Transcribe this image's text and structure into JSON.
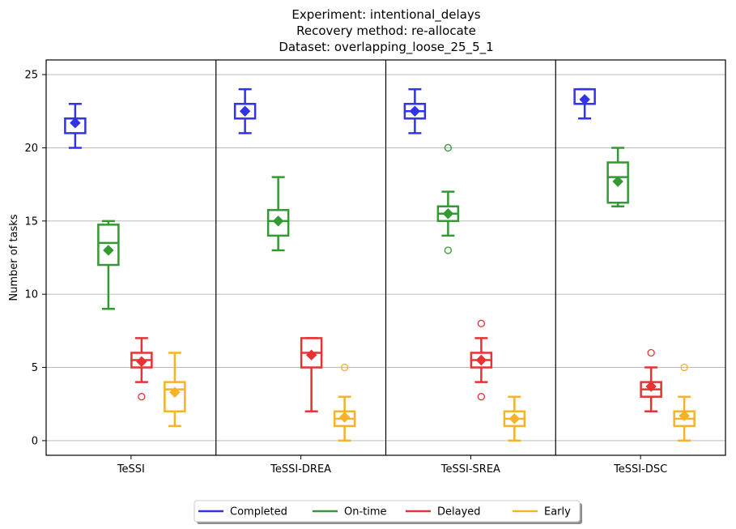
{
  "chart_data": {
    "type": "box",
    "title_lines": [
      "Experiment: intentional_delays",
      "Recovery method: re-allocate",
      "Dataset: overlapping_loose_25_5_1"
    ],
    "xlabel": "",
    "ylabel": "Number of tasks",
    "ylim": [
      -1,
      26
    ],
    "yticks": [
      0,
      5,
      10,
      15,
      20,
      25
    ],
    "grid": "horizontal",
    "legend_position": "bottom-center",
    "categories": [
      "TeSSI",
      "TeSSI-DREA",
      "TeSSI-SREA",
      "TeSSI-DSC"
    ],
    "series": [
      {
        "name": "Completed",
        "color": "#3333e6",
        "boxes": [
          {
            "whislo": 20,
            "q1": 21,
            "med": 22,
            "q3": 22,
            "whishi": 23,
            "mean": 21.7,
            "fliers": []
          },
          {
            "whislo": 21,
            "q1": 22,
            "med": 23,
            "q3": 23,
            "whishi": 24,
            "mean": 22.5,
            "fliers": []
          },
          {
            "whislo": 21,
            "q1": 22,
            "med": 22.5,
            "q3": 23,
            "whishi": 24,
            "mean": 22.5,
            "fliers": []
          },
          {
            "whislo": 22,
            "q1": 23,
            "med": 23,
            "q3": 24,
            "whishi": 24,
            "mean": 23.3,
            "fliers": []
          }
        ]
      },
      {
        "name": "On-time",
        "color": "#339933",
        "boxes": [
          {
            "whislo": 9,
            "q1": 12,
            "med": 13.5,
            "q3": 14.75,
            "whishi": 15,
            "mean": 13,
            "fliers": []
          },
          {
            "whislo": 13,
            "q1": 14,
            "med": 15,
            "q3": 15.75,
            "whishi": 18,
            "mean": 15,
            "fliers": []
          },
          {
            "whislo": 14,
            "q1": 15,
            "med": 15.5,
            "q3": 16,
            "whishi": 17,
            "mean": 15.5,
            "fliers": [
              13,
              20
            ]
          },
          {
            "whislo": 16,
            "q1": 16.25,
            "med": 18,
            "q3": 19,
            "whishi": 20,
            "mean": 17.7,
            "fliers": []
          }
        ]
      },
      {
        "name": "Delayed",
        "color": "#e63333",
        "boxes": [
          {
            "whislo": 4,
            "q1": 5,
            "med": 5.5,
            "q3": 6,
            "whishi": 7,
            "mean": 5.4,
            "fliers": [
              3
            ]
          },
          {
            "whislo": 2,
            "q1": 5,
            "med": 6,
            "q3": 7,
            "whishi": 7,
            "mean": 5.85,
            "fliers": []
          },
          {
            "whislo": 4,
            "q1": 5,
            "med": 5.5,
            "q3": 6,
            "whishi": 7,
            "mean": 5.5,
            "fliers": [
              3,
              8
            ]
          },
          {
            "whislo": 2,
            "q1": 3,
            "med": 3.5,
            "q3": 4,
            "whishi": 5,
            "mean": 3.7,
            "fliers": [
              6
            ]
          }
        ]
      },
      {
        "name": "Early",
        "color": "#f7b12b",
        "boxes": [
          {
            "whislo": 1,
            "q1": 2,
            "med": 3.5,
            "q3": 4,
            "whishi": 6,
            "mean": 3.3,
            "fliers": []
          },
          {
            "whislo": 0,
            "q1": 1,
            "med": 1.5,
            "q3": 2,
            "whishi": 3,
            "mean": 1.6,
            "fliers": [
              5
            ]
          },
          {
            "whislo": 0,
            "q1": 1,
            "med": 1.5,
            "q3": 2,
            "whishi": 3,
            "mean": 1.5,
            "fliers": []
          },
          {
            "whislo": 0,
            "q1": 1,
            "med": 1.5,
            "q3": 2,
            "whishi": 3,
            "mean": 1.7,
            "fliers": [
              5
            ]
          }
        ]
      }
    ]
  }
}
